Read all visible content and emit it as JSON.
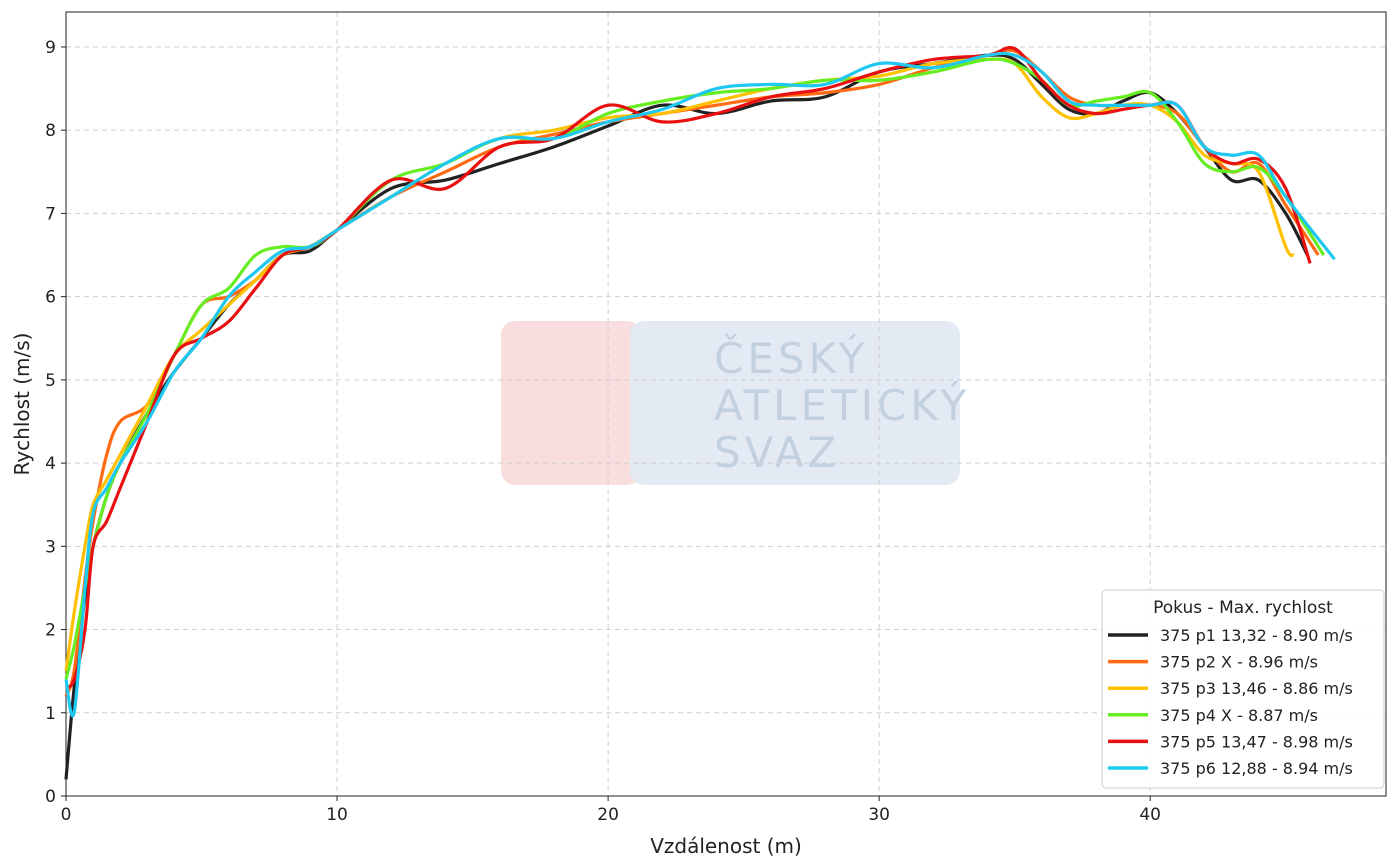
{
  "chart_data": {
    "type": "line",
    "xlabel": "Vzdálenost (m)",
    "ylabel": "Rychlost (m/s)",
    "xlim": [
      0,
      48.7
    ],
    "ylim": [
      0,
      9.42
    ],
    "xticks": [
      0,
      10,
      20,
      30,
      40
    ],
    "yticks": [
      0,
      1,
      2,
      3,
      4,
      5,
      6,
      7,
      8,
      9
    ],
    "grid": true,
    "legend_title": "Pokus - Max. rychlost",
    "legend_position": "lower right",
    "watermark": [
      "ČESKÝ",
      "ATLETICKÝ",
      "SVAZ"
    ],
    "series": [
      {
        "name": "375 p1 13,32 - 8.90 m/s",
        "color": "#222222",
        "x": [
          0,
          0.3,
          0.7,
          1,
          1.5,
          2,
          3,
          4,
          5,
          6,
          7,
          8,
          9,
          10,
          12,
          14,
          16,
          18,
          20,
          22,
          24,
          26,
          28,
          30,
          32,
          34,
          35,
          36,
          37,
          38,
          39,
          40,
          41,
          42,
          43,
          44,
          45,
          45.8
        ],
        "values": [
          0.2,
          1.3,
          2.4,
          3.0,
          3.6,
          4.0,
          4.6,
          5.1,
          5.5,
          5.9,
          6.2,
          6.5,
          6.55,
          6.8,
          7.3,
          7.4,
          7.6,
          7.8,
          8.05,
          8.3,
          8.2,
          8.35,
          8.4,
          8.7,
          8.8,
          8.9,
          8.85,
          8.55,
          8.25,
          8.2,
          8.35,
          8.45,
          8.2,
          7.8,
          7.4,
          7.4,
          7.0,
          6.5
        ]
      },
      {
        "name": "375 p2 X - 8.96 m/s",
        "color": "#ff6a13",
        "x": [
          0,
          0.3,
          0.7,
          1,
          1.5,
          2,
          3,
          4,
          5,
          6,
          7,
          8,
          9,
          10,
          12,
          14,
          16,
          18,
          20,
          22,
          24,
          26,
          28,
          30,
          32,
          34,
          35,
          36,
          37,
          38,
          39,
          40,
          41,
          42,
          43,
          44,
          45,
          46.2
        ],
        "values": [
          1.2,
          1.5,
          2.6,
          3.3,
          4.1,
          4.5,
          4.7,
          5.3,
          5.9,
          6.0,
          6.2,
          6.5,
          6.6,
          6.8,
          7.2,
          7.5,
          7.8,
          7.95,
          8.1,
          8.2,
          8.3,
          8.4,
          8.45,
          8.55,
          8.75,
          8.9,
          8.95,
          8.7,
          8.4,
          8.3,
          8.3,
          8.3,
          8.2,
          7.8,
          7.5,
          7.6,
          7.1,
          6.5
        ]
      },
      {
        "name": "375 p3 13,46 - 8.86 m/s",
        "color": "#ffc000",
        "x": [
          0,
          0.3,
          0.7,
          1,
          1.5,
          2,
          3,
          4,
          5,
          6,
          7,
          8,
          9,
          10,
          12,
          14,
          16,
          18,
          20,
          22,
          24,
          26,
          28,
          30,
          32,
          34,
          35,
          36,
          37,
          38,
          39,
          40,
          41,
          42,
          43,
          44,
          45,
          45.3
        ],
        "values": [
          1.5,
          2.2,
          3.0,
          3.5,
          3.8,
          4.1,
          4.7,
          5.3,
          5.6,
          5.9,
          6.2,
          6.5,
          6.6,
          6.8,
          7.2,
          7.6,
          7.9,
          8.0,
          8.15,
          8.2,
          8.35,
          8.5,
          8.6,
          8.65,
          8.8,
          8.85,
          8.8,
          8.4,
          8.15,
          8.2,
          8.3,
          8.3,
          8.1,
          7.7,
          7.6,
          7.5,
          6.6,
          6.5
        ]
      },
      {
        "name": "375 p4 X - 8.87 m/s",
        "color": "#66ee22",
        "x": [
          0,
          0.3,
          0.7,
          1,
          1.5,
          2,
          3,
          4,
          5,
          6,
          7,
          8,
          9,
          10,
          12,
          14,
          16,
          18,
          20,
          22,
          24,
          26,
          28,
          30,
          32,
          34,
          35,
          36,
          37,
          38,
          39,
          40,
          41,
          42,
          43,
          44,
          45,
          46.4
        ],
        "values": [
          1.4,
          1.8,
          2.5,
          3.0,
          3.6,
          4.0,
          4.6,
          5.3,
          5.9,
          6.1,
          6.5,
          6.6,
          6.6,
          6.8,
          7.4,
          7.6,
          7.9,
          7.9,
          8.2,
          8.35,
          8.45,
          8.5,
          8.6,
          8.6,
          8.7,
          8.85,
          8.8,
          8.6,
          8.3,
          8.35,
          8.4,
          8.45,
          8.1,
          7.6,
          7.5,
          7.55,
          7.2,
          6.5
        ]
      },
      {
        "name": "375 p5 13,47 - 8.98 m/s",
        "color": "#e81010",
        "x": [
          0,
          0.3,
          0.7,
          1,
          1.5,
          2,
          3,
          4,
          5,
          6,
          7,
          8,
          9,
          10,
          12,
          14,
          16,
          18,
          20,
          22,
          24,
          26,
          28,
          30,
          32,
          34,
          35,
          36,
          37,
          38,
          39,
          40,
          41,
          42,
          43,
          44,
          45,
          45.9
        ],
        "values": [
          1.3,
          1.4,
          2.0,
          3.0,
          3.3,
          3.7,
          4.5,
          5.3,
          5.5,
          5.7,
          6.1,
          6.5,
          6.6,
          6.8,
          7.4,
          7.3,
          7.8,
          7.9,
          8.3,
          8.1,
          8.2,
          8.4,
          8.5,
          8.7,
          8.85,
          8.9,
          8.98,
          8.6,
          8.3,
          8.2,
          8.25,
          8.3,
          8.3,
          7.8,
          7.6,
          7.65,
          7.3,
          6.4
        ]
      },
      {
        "name": "375 p6 12,88 - 8.94 m/s",
        "color": "#1ec8f0",
        "x": [
          0,
          0.3,
          0.7,
          1,
          1.5,
          2,
          3,
          4,
          5,
          6,
          7,
          8,
          9,
          10,
          12,
          14,
          16,
          18,
          20,
          22,
          24,
          26,
          28,
          30,
          32,
          34,
          35,
          36,
          37,
          38,
          39,
          40,
          41,
          42,
          43,
          44,
          45,
          46.8
        ],
        "values": [
          1.4,
          1.0,
          2.5,
          3.4,
          3.7,
          4.0,
          4.5,
          5.1,
          5.5,
          6.0,
          6.3,
          6.55,
          6.6,
          6.8,
          7.2,
          7.6,
          7.9,
          7.9,
          8.1,
          8.25,
          8.5,
          8.55,
          8.55,
          8.8,
          8.75,
          8.9,
          8.9,
          8.7,
          8.35,
          8.3,
          8.3,
          8.3,
          8.3,
          7.8,
          7.7,
          7.7,
          7.2,
          6.45
        ]
      }
    ]
  }
}
